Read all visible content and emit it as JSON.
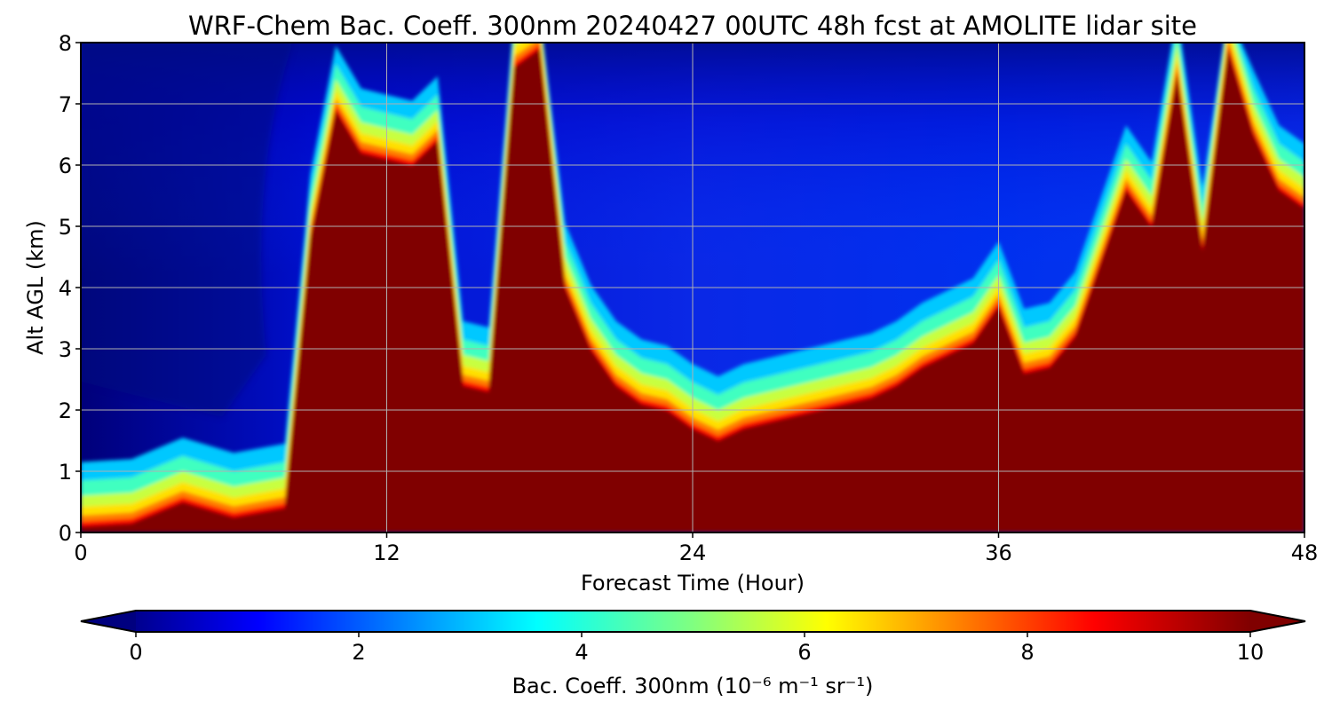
{
  "chart_data": {
    "type": "heatmap",
    "title": "WRF-Chem Bac. Coeff. 300nm  20240427 00UTC 48h fcst at AMOLITE lidar site",
    "xlabel": "Forecast Time (Hour)",
    "ylabel": "Alt AGL (km)",
    "xlim": [
      0,
      48
    ],
    "ylim": [
      0,
      8
    ],
    "x_ticks": [
      "0",
      "12",
      "24",
      "36",
      "48"
    ],
    "y_ticks": [
      "0",
      "1",
      "2",
      "3",
      "4",
      "5",
      "6",
      "7",
      "8"
    ],
    "grid": true,
    "colormap": "jet",
    "colorbar": {
      "label": "Bac. Coeff. 300nm  (10⁻⁶ m⁻¹ sr⁻¹)",
      "range": [
        0,
        10
      ],
      "ticks": [
        "0",
        "2",
        "4",
        "6",
        "8",
        "10"
      ],
      "extend": "both"
    },
    "aerosol_top_km": {
      "hours": [
        0,
        2,
        4,
        6,
        8,
        9,
        10,
        11,
        12,
        13,
        14,
        15,
        16,
        17,
        18,
        19,
        20,
        21,
        22,
        23,
        24,
        25,
        26,
        27,
        28,
        29,
        30,
        31,
        32,
        33,
        34,
        35,
        36,
        37,
        38,
        39,
        40,
        41,
        42,
        43,
        44,
        45,
        46,
        47,
        48
      ],
      "values": [
        0.1,
        0.15,
        0.5,
        0.25,
        0.4,
        4.8,
        6.9,
        6.2,
        6.1,
        6.0,
        6.4,
        2.4,
        2.3,
        7.6,
        7.9,
        4.0,
        3.0,
        2.4,
        2.1,
        2.0,
        1.7,
        1.5,
        1.7,
        1.8,
        1.9,
        2.0,
        2.1,
        2.2,
        2.4,
        2.7,
        2.9,
        3.1,
        3.7,
        2.6,
        2.7,
        3.2,
        4.4,
        5.6,
        5.0,
        7.5,
        4.6,
        7.9,
        6.5,
        5.6,
        5.3
      ]
    }
  }
}
